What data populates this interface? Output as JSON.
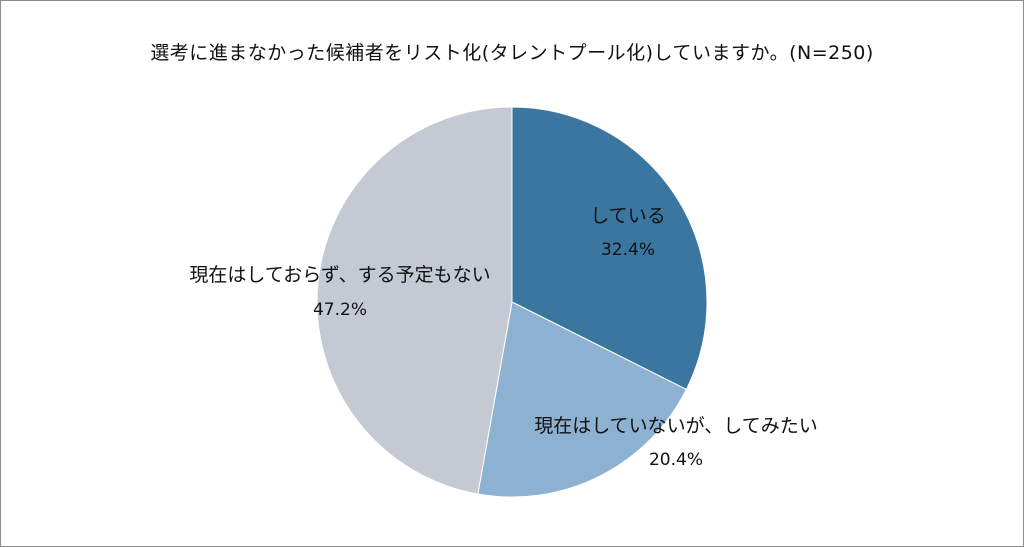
{
  "chart_data": {
    "type": "pie",
    "title": "選考に進まなかった候補者をリスト化(タレントプール化)していますか。(N=250)",
    "unit": "%",
    "slices": [
      {
        "name": "している",
        "value": 32.4,
        "value_label": "32.4%",
        "color": "#3b76a1"
      },
      {
        "name": "現在はしていないが、してみたい",
        "value": 20.4,
        "value_label": "20.4%",
        "color": "#8db1d0"
      },
      {
        "name": "現在はしておらず、する予定もない",
        "value": 47.2,
        "value_label": "47.2%",
        "color": "#c4c9d4"
      }
    ]
  }
}
